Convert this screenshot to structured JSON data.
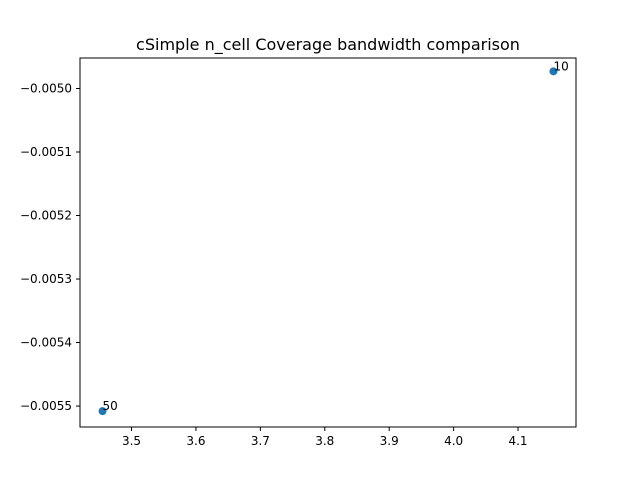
{
  "chart_data": {
    "type": "scatter",
    "title": "cSimple n_cell Coverage bandwidth comparison",
    "xlabel": "",
    "ylabel": "",
    "xlim": [
      3.42,
      4.19
    ],
    "ylim": [
      -0.005533,
      -0.004952
    ],
    "xticks": [
      3.5,
      3.6,
      3.7,
      3.8,
      3.9,
      4.0,
      4.1
    ],
    "xtick_labels": [
      "3.5",
      "3.6",
      "3.7",
      "3.8",
      "3.9",
      "4.0",
      "4.1"
    ],
    "yticks": [
      -0.005,
      -0.0051,
      -0.0052,
      -0.0053,
      -0.0054,
      -0.0055
    ],
    "ytick_labels": [
      "−0.0050",
      "−0.0051",
      "−0.0052",
      "−0.0053",
      "−0.0054",
      "−0.0055"
    ],
    "grid": false,
    "points": [
      {
        "x": 4.155,
        "y": -0.004973,
        "label": "10"
      },
      {
        "x": 3.455,
        "y": -0.005508,
        "label": "50"
      }
    ],
    "colors": {
      "marker": "#1f77b4",
      "axes": "#000000"
    }
  }
}
